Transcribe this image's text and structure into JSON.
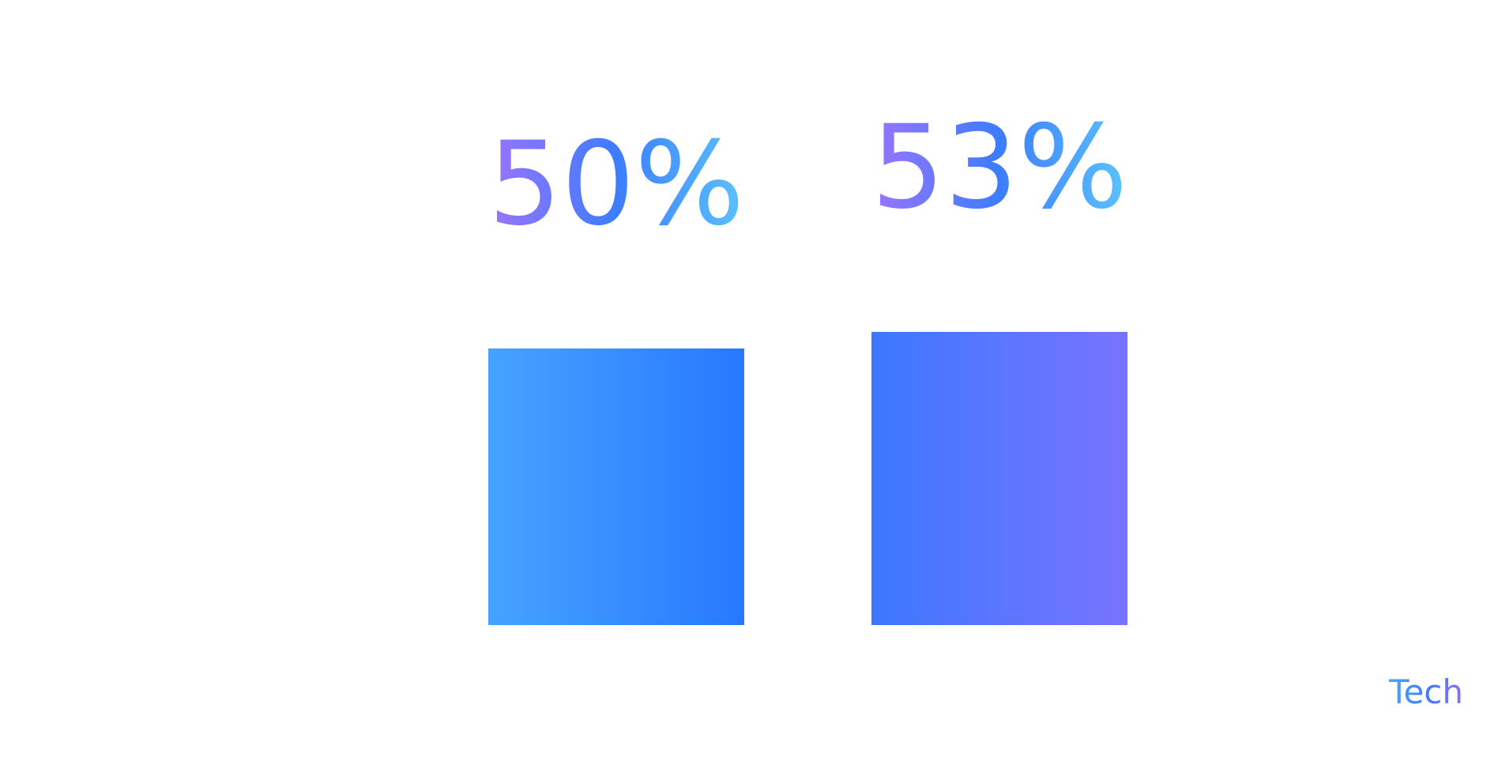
{
  "chart_data": {
    "type": "bar",
    "categories": [
      "",
      ""
    ],
    "values": [
      50,
      53
    ],
    "data_labels": [
      "50%",
      "53%"
    ],
    "title": "",
    "xlabel": "",
    "ylabel": "",
    "ylim": [
      0,
      60
    ],
    "grid": false,
    "legend": "none",
    "colors": {
      "bar_1_start": "#46a3ff",
      "bar_1_end": "#2878ff",
      "bar_2_start": "#3d77ff",
      "bar_2_end": "#7774ff",
      "label_start": "#9a74ff",
      "label_mid": "#3c7dff",
      "label_end": "#5bc3ff"
    }
  },
  "brand": {
    "text": "Tech"
  }
}
